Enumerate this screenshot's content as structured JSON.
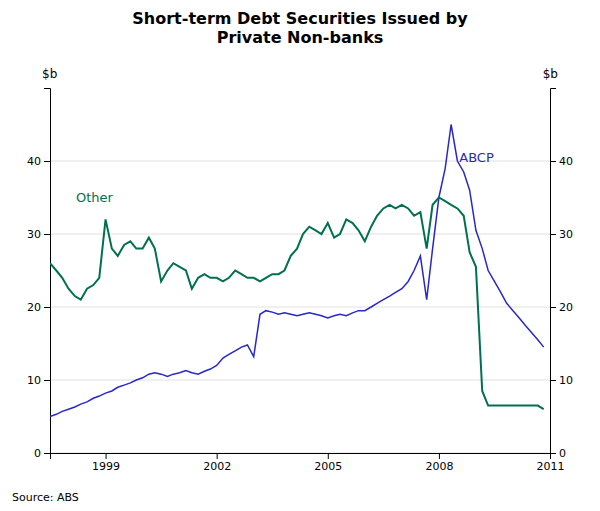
{
  "chart_data": {
    "type": "line",
    "title": "Short-term Debt Securities Issued by\nPrivate Non-banks",
    "ylabel": "$b",
    "y2label": "$b",
    "source": "Source: ABS",
    "x": [
      1997.5,
      1997.67,
      1997.83,
      1998.0,
      1998.17,
      1998.33,
      1998.5,
      1998.67,
      1998.83,
      1999.0,
      1999.17,
      1999.33,
      1999.5,
      1999.67,
      1999.83,
      2000.0,
      2000.17,
      2000.33,
      2000.5,
      2000.67,
      2000.83,
      2001.0,
      2001.17,
      2001.33,
      2001.5,
      2001.67,
      2001.83,
      2002.0,
      2002.17,
      2002.33,
      2002.5,
      2002.67,
      2002.83,
      2003.0,
      2003.17,
      2003.33,
      2003.5,
      2003.67,
      2003.83,
      2004.0,
      2004.17,
      2004.33,
      2004.5,
      2004.67,
      2004.83,
      2005.0,
      2005.17,
      2005.33,
      2005.5,
      2005.67,
      2005.83,
      2006.0,
      2006.17,
      2006.33,
      2006.5,
      2006.67,
      2006.83,
      2007.0,
      2007.17,
      2007.33,
      2007.5,
      2007.67,
      2007.83,
      2008.0,
      2008.17,
      2008.33,
      2008.5,
      2008.67,
      2008.83,
      2009.0,
      2009.17,
      2009.33,
      2009.5,
      2009.67,
      2009.83,
      2010.0,
      2010.17,
      2010.33,
      2010.5,
      2010.67,
      2010.83
    ],
    "series": [
      {
        "name": "ABCP",
        "color": "#2828c8",
        "values": [
          5.0,
          5.3,
          5.7,
          6.0,
          6.3,
          6.7,
          7.0,
          7.5,
          7.8,
          8.2,
          8.5,
          9.0,
          9.3,
          9.6,
          10.0,
          10.3,
          10.8,
          11.0,
          10.8,
          10.5,
          10.8,
          11.0,
          11.3,
          11.0,
          10.8,
          11.2,
          11.5,
          12.0,
          13.0,
          13.5,
          14.0,
          14.5,
          14.8,
          13.2,
          19.0,
          19.5,
          19.3,
          19.0,
          19.2,
          19.0,
          18.8,
          19.0,
          19.2,
          19.0,
          18.8,
          18.5,
          18.8,
          19.0,
          18.8,
          19.2,
          19.5,
          19.5,
          20.0,
          20.5,
          21.0,
          21.5,
          22.0,
          22.5,
          23.5,
          25.0,
          27.0,
          21.0,
          28.0,
          35.0,
          39.0,
          45.0,
          40.0,
          38.5,
          36.0,
          30.5,
          28.0,
          25.0,
          23.5,
          22.0,
          20.5,
          19.5,
          18.5,
          17.5,
          16.5,
          15.5,
          14.5
        ]
      },
      {
        "name": "Other",
        "color": "#007050",
        "values": [
          26.0,
          25.0,
          24.0,
          22.5,
          21.5,
          21.0,
          22.5,
          23.0,
          24.0,
          32.0,
          28.0,
          27.0,
          28.5,
          29.0,
          28.0,
          28.0,
          29.5,
          28.0,
          23.5,
          25.0,
          26.0,
          25.5,
          25.0,
          22.5,
          24.0,
          24.5,
          24.0,
          24.0,
          23.5,
          24.0,
          25.0,
          24.5,
          24.0,
          24.0,
          23.5,
          24.0,
          24.5,
          24.5,
          25.0,
          27.0,
          28.0,
          30.0,
          31.0,
          30.5,
          30.0,
          31.5,
          29.5,
          30.0,
          32.0,
          31.5,
          30.5,
          29.0,
          31.0,
          32.5,
          33.5,
          34.0,
          33.5,
          34.0,
          33.5,
          32.5,
          33.0,
          28.0,
          34.0,
          35.0,
          34.5,
          34.0,
          33.5,
          32.5,
          27.5,
          25.5,
          8.5,
          6.5,
          6.5,
          6.5,
          6.5,
          6.5,
          6.5,
          6.5,
          6.5,
          6.5,
          6.0
        ]
      }
    ],
    "xlim": [
      1997.5,
      2011.0
    ],
    "xticks": [
      1999,
      2002,
      2005,
      2008,
      2011
    ],
    "ylim": [
      0,
      50
    ],
    "yticks": [
      0,
      10,
      20,
      30,
      40
    ],
    "y2lim": [
      0,
      50
    ],
    "y2ticks": [
      0,
      10,
      20,
      30,
      40
    ],
    "grid": true
  }
}
